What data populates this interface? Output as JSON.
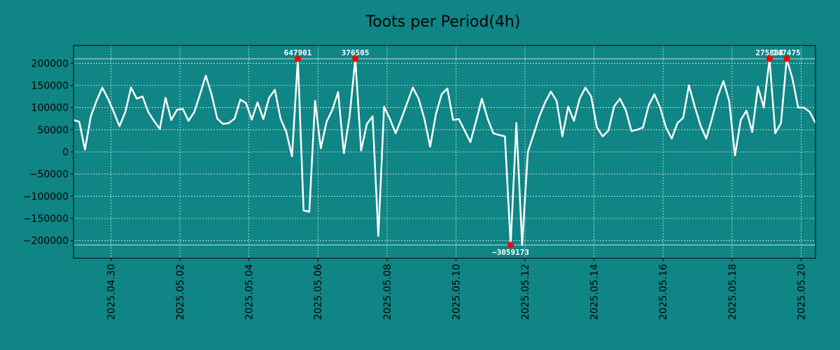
{
  "chart_data": {
    "type": "line",
    "title": "Toots per Period(4h)",
    "xlabel": "",
    "ylabel": "",
    "grid": true,
    "colors": {
      "background": "#108585",
      "line": "#ffffff",
      "grid": "#cfe7e7",
      "marker": "#ff0000",
      "frame": "#000000"
    },
    "ylim": [
      -240000,
      240000
    ],
    "xlim": [
      0,
      129
    ],
    "y_ticks": [
      -200000,
      -150000,
      -100000,
      -50000,
      0,
      50000,
      100000,
      150000,
      200000
    ],
    "y_tick_labels": [
      "−200000",
      "−150000",
      "−100000",
      "−50000",
      "0",
      "50000",
      "100000",
      "150000",
      "200000"
    ],
    "x_ticks": [
      6.5,
      18.5,
      30.5,
      42.5,
      54.5,
      66.5,
      78.5,
      90.5,
      102.5,
      114.5,
      126.5
    ],
    "x_tick_labels": [
      "2025.04.30",
      "2025.05.02",
      "2025.05.04",
      "2025.05.06",
      "2025.05.08",
      "2025.05.10",
      "2025.05.12",
      "2025.05.14",
      "2025.05.16",
      "2025.05.18",
      "2025.05.20"
    ],
    "clip_lines": [
      210000,
      -210000
    ],
    "x": [
      0,
      1,
      2,
      3,
      4,
      5,
      6,
      7,
      8,
      9,
      10,
      11,
      12,
      13,
      14,
      15,
      16,
      17,
      18,
      19,
      20,
      21,
      22,
      23,
      24,
      25,
      26,
      27,
      28,
      29,
      30,
      31,
      32,
      33,
      34,
      35,
      36,
      37,
      38,
      39,
      40,
      41,
      42,
      43,
      44,
      45,
      46,
      47,
      48,
      49,
      50,
      51,
      52,
      53,
      54,
      55,
      56,
      57,
      58,
      59,
      60,
      61,
      62,
      63,
      64,
      65,
      66,
      67,
      68,
      69,
      70,
      71,
      72,
      73,
      74,
      75,
      76,
      77,
      78,
      79,
      80,
      81,
      82,
      83,
      84,
      85,
      86,
      87,
      88,
      89,
      90,
      91,
      92,
      93,
      94,
      95,
      96,
      97,
      98,
      99,
      100,
      101,
      102,
      103,
      104,
      105,
      106,
      107,
      108,
      109,
      110,
      111,
      112,
      113,
      114,
      115,
      116,
      117,
      118,
      119,
      120,
      121,
      122,
      123,
      124,
      125,
      126,
      127,
      128,
      129
    ],
    "values": [
      72000,
      68000,
      5000,
      80000,
      115000,
      145000,
      120000,
      90000,
      58000,
      90000,
      145000,
      120000,
      125000,
      90000,
      70000,
      52000,
      122000,
      72000,
      95000,
      97000,
      70000,
      90000,
      130000,
      172000,
      130000,
      75000,
      63000,
      65000,
      75000,
      118000,
      110000,
      73000,
      112000,
      74000,
      122000,
      140000,
      75000,
      45000,
      -10000,
      210000,
      -132000,
      -135000,
      115000,
      8000,
      68000,
      95000,
      135000,
      -3000,
      80000,
      210000,
      3000,
      63000,
      80000,
      -190000,
      102000,
      75000,
      42000,
      75000,
      110000,
      145000,
      120000,
      75000,
      12000,
      85000,
      130000,
      143000,
      72000,
      74000,
      48000,
      22000,
      70000,
      120000,
      75000,
      42000,
      38000,
      35000,
      -210000,
      65000,
      -210000,
      0,
      40000,
      80000,
      112000,
      136000,
      115000,
      35000,
      102000,
      70000,
      120000,
      145000,
      125000,
      55000,
      35000,
      48000,
      103000,
      120000,
      95000,
      47000,
      50000,
      55000,
      105000,
      130000,
      100000,
      55000,
      30000,
      65000,
      77000,
      150000,
      103000,
      60000,
      30000,
      75000,
      125000,
      160000,
      115000,
      -8000,
      72000,
      93000,
      45000,
      147000,
      100000,
      210000,
      42000,
      65000,
      210000,
      165000,
      100000,
      100000,
      90000,
      65000
    ],
    "annotations": [
      {
        "label": "647901",
        "x": 39
      },
      {
        "label": "376505",
        "x": 49
      },
      {
        "label": "−3059173",
        "x": 76
      },
      {
        "label": "275883",
        "x": 121
      },
      {
        "label": "147475",
        "x": 124
      }
    ]
  }
}
